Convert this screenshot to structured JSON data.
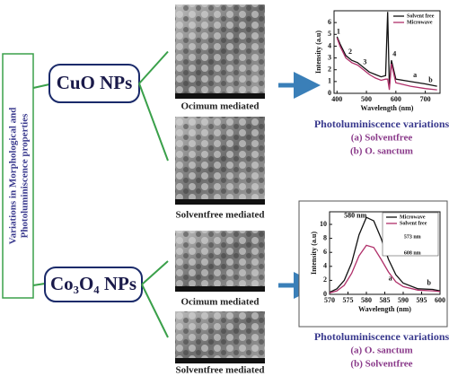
{
  "side_label": {
    "lines": [
      "Variations in Morphological and",
      "Photoluminiscence properties"
    ]
  },
  "sections": [
    {
      "label": "CuO NPs",
      "images": [
        {
          "caption": "Ocimum mediated"
        },
        {
          "caption": "Solventfree mediated"
        }
      ],
      "chart": {
        "type": "line",
        "xlabel": "Wavelength (nm)",
        "ylabel": "Intensity (a.u)",
        "xlim": [
          390,
          750
        ],
        "xticks": [
          400,
          500,
          600,
          700
        ],
        "ylim": [
          0,
          7
        ],
        "yticks": [
          0,
          1,
          2,
          3,
          4,
          5,
          6
        ],
        "series": [
          {
            "name": "Solvent free",
            "color": "#111111",
            "x": [
              400,
              410,
              430,
              450,
              470,
              490,
              510,
              530,
              550,
              565,
              572,
              578,
              585,
              600,
              650,
              700,
              740
            ],
            "values": [
              4.8,
              4.2,
              3.2,
              2.8,
              2.6,
              2.2,
              1.8,
              1.6,
              1.4,
              1.5,
              6.9,
              0.5,
              2.8,
              1.2,
              1.0,
              0.8,
              0.6
            ]
          },
          {
            "name": "Microwave",
            "color": "#b0306a",
            "x": [
              400,
              410,
              430,
              450,
              470,
              490,
              510,
              530,
              550,
              565,
              572,
              578,
              585,
              600,
              650,
              700,
              740
            ],
            "values": [
              4.7,
              4.0,
              3.0,
              2.6,
              2.4,
              2.0,
              1.6,
              1.3,
              1.1,
              1.2,
              1.2,
              0.3,
              2.5,
              0.9,
              0.6,
              0.4,
              0.3
            ]
          }
        ],
        "annotations": [
          {
            "text": "1",
            "x": 405,
            "y": 5.2
          },
          {
            "text": "2",
            "x": 445,
            "y": 3.5
          },
          {
            "text": "3",
            "x": 495,
            "y": 2.6
          },
          {
            "text": "4",
            "x": 595,
            "y": 3.3
          },
          {
            "text": "a",
            "x": 665,
            "y": 1.5
          },
          {
            "text": "b",
            "x": 718,
            "y": 1.1
          }
        ]
      },
      "caption": {
        "title": "Photoluminiscence variations",
        "items": [
          "(a) Solventfree",
          "(b) O. sanctum"
        ]
      }
    },
    {
      "label": "Co₃O₄ NPs",
      "images": [
        {
          "caption": "Ocimum mediated"
        },
        {
          "caption": "Solventfree mediated"
        }
      ],
      "chart": {
        "type": "line",
        "xlabel": "Wavelength (nm)",
        "ylabel": "Intensity (a.u)",
        "xlim": [
          570,
          600
        ],
        "xticks": [
          570,
          575,
          580,
          585,
          590,
          595,
          600
        ],
        "ylim": [
          0,
          11.8
        ],
        "yticks": [
          0,
          2,
          4,
          6,
          8,
          10
        ],
        "series": [
          {
            "name": "Microwave",
            "color": "#111111",
            "x": [
              570,
              572,
              574,
              576,
              578,
              580,
              582,
              584,
              586,
              588,
              590,
              594,
              598,
              600
            ],
            "values": [
              0.3,
              0.8,
              2,
              4.5,
              8.5,
              11,
              10.5,
              8,
              5,
              2.8,
              1.6,
              0.8,
              0.7,
              0.5
            ]
          },
          {
            "name": "Solvent free",
            "color": "#b0306a",
            "x": [
              570,
              572,
              574,
              576,
              578,
              580,
              582,
              584,
              586,
              588,
              590,
              594,
              598,
              600
            ],
            "values": [
              0.2,
              0.5,
              1.3,
              3,
              5.5,
              7,
              6.7,
              5,
              3.2,
              1.8,
              1.1,
              0.6,
              0.5,
              0.4
            ]
          }
        ],
        "annotations": [
          {
            "text": "580 nm",
            "x": 577,
            "y": 11.2
          },
          {
            "text": "a",
            "x": 586.5,
            "y": 2.2
          },
          {
            "text": "b",
            "x": 597,
            "y": 1.6
          },
          {
            "text": "573 nm",
            "x": 592.5,
            "y": 8.2
          },
          {
            "text": "608 nm",
            "x": 592.5,
            "y": 5.9
          }
        ]
      },
      "caption": {
        "title": "Photoluminiscence variations",
        "items": [
          "(a) O. sanctum",
          "(b) Solventfree"
        ]
      }
    }
  ]
}
